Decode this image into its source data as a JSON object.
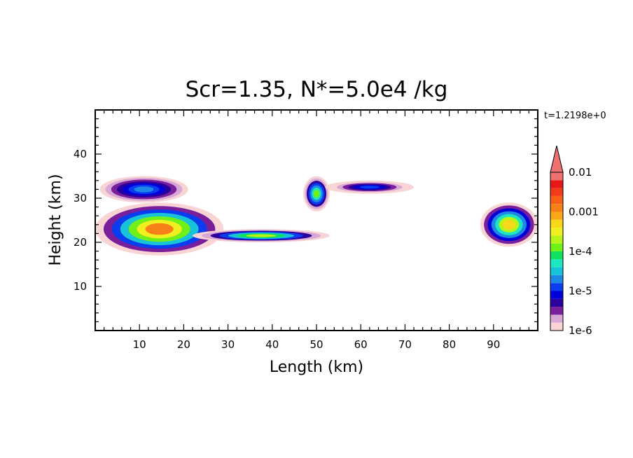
{
  "chart_data": {
    "type": "heatmap",
    "title": "Scr=1.35, N*=5.0e4 /kg",
    "time_label": "t=1.2198e+0",
    "xlabel": "Length  (km)",
    "ylabel": "Height  (km)",
    "xlim": [
      0,
      100
    ],
    "ylim": [
      0,
      50
    ],
    "x_ticks": [
      "10",
      "20",
      "30",
      "40",
      "50",
      "60",
      "70",
      "80",
      "90"
    ],
    "y_ticks": [
      "10",
      "20",
      "30",
      "40"
    ],
    "colorbar": {
      "scale": "log",
      "range": [
        1e-06,
        0.01
      ],
      "labels": [
        "0.01",
        "0.001",
        "1e-4",
        "1e-5",
        "1e-6"
      ],
      "colors": [
        "#f9d4d4",
        "#d7a8d6",
        "#7a1f9c",
        "#2a009c",
        "#0000d8",
        "#0a3cf0",
        "#1e88e6",
        "#18c2d8",
        "#1ee6c0",
        "#10e060",
        "#70f018",
        "#b8f418",
        "#f0f020",
        "#f8d818",
        "#f8a818",
        "#f88018",
        "#f86018",
        "#f03c18",
        "#e81818",
        "#f07070"
      ]
    },
    "regions": [
      {
        "name": "left-cloud-core",
        "x": [
          0,
          29
        ],
        "y": [
          17,
          29
        ],
        "peak": 0.001
      },
      {
        "name": "left-cloud-tail",
        "x": [
          22,
          53
        ],
        "y": [
          20,
          23
        ],
        "peak": 0.0002
      },
      {
        "name": "left-upper-patches",
        "x": [
          1,
          21
        ],
        "y": [
          29,
          35
        ],
        "peak": 2e-05
      },
      {
        "name": "center-blob",
        "x": [
          47,
          53
        ],
        "y": [
          27,
          35
        ],
        "peak": 0.0001
      },
      {
        "name": "center-streak",
        "x": [
          52,
          72
        ],
        "y": [
          31,
          34
        ],
        "peak": 1e-05
      },
      {
        "name": "right-cloud",
        "x": [
          87,
          100
        ],
        "y": [
          19,
          29
        ],
        "peak": 0.0005
      }
    ]
  }
}
